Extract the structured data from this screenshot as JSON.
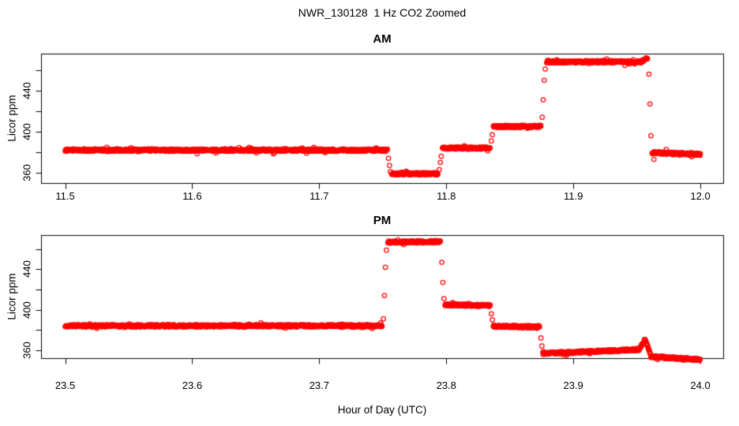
{
  "figure": {
    "title": "NWR_130128  1 Hz CO2 Zoomed",
    "xlabel": "Hour of Day (UTC)",
    "background": "#ffffff",
    "point_color": "#ff0000",
    "axis_color": "#000000"
  },
  "chart_data": [
    {
      "type": "scatter",
      "title": "AM",
      "ylabel": "Licor ppm",
      "marker": "open-circle",
      "color": "#ff0000",
      "sample_rate_hz": 1,
      "grid": false,
      "xlim": [
        11.481,
        12.018
      ],
      "ylim": [
        350,
        476
      ],
      "xticks": [
        11.5,
        11.6,
        11.7,
        11.8,
        11.9,
        12.0
      ],
      "xtick_labels": [
        "11.5",
        "11.6",
        "11.7",
        "11.8",
        "11.9",
        "12.0"
      ],
      "yticks": [
        360,
        380,
        400,
        420,
        440,
        460
      ],
      "ytick_labeled_values": [
        360,
        400,
        440
      ],
      "ytick_labels": [
        "360",
        "400",
        "440"
      ],
      "segments": [
        [
          11.5,
          11.7535,
          382.0,
          382.0
        ],
        [
          11.757,
          11.7935,
          359.0,
          359.0
        ],
        [
          11.797,
          11.8345,
          384.0,
          384.0
        ],
        [
          11.837,
          11.8745,
          405.0,
          405.0
        ],
        [
          11.879,
          11.954,
          468.0,
          468.0
        ],
        [
          11.954,
          11.9585,
          468.5,
          471.0
        ],
        [
          11.962,
          12.0,
          379.5,
          378.0
        ]
      ],
      "transition_points": [
        [
          11.7545,
          374
        ],
        [
          11.7553,
          367
        ],
        [
          11.756,
          361
        ],
        [
          11.7945,
          363
        ],
        [
          11.7953,
          370
        ],
        [
          11.796,
          376
        ],
        [
          11.8355,
          391
        ],
        [
          11.8362,
          397
        ],
        [
          11.8755,
          414
        ],
        [
          11.8763,
          431
        ],
        [
          11.8771,
          450
        ],
        [
          11.8779,
          461
        ],
        [
          11.9595,
          456
        ],
        [
          11.9603,
          427
        ],
        [
          11.9611,
          396
        ],
        [
          11.9635,
          373
        ]
      ]
    },
    {
      "type": "scatter",
      "title": "PM",
      "ylabel": "Licor ppm",
      "marker": "open-circle",
      "color": "#ff0000",
      "sample_rate_hz": 1,
      "grid": false,
      "xlim": [
        23.481,
        24.018
      ],
      "ylim": [
        352,
        474
      ],
      "xticks": [
        23.5,
        23.6,
        23.7,
        23.8,
        23.9,
        24.0
      ],
      "xtick_labels": [
        "23.5",
        "23.6",
        "23.7",
        "23.8",
        "23.9",
        "24.0"
      ],
      "yticks": [
        360,
        380,
        400,
        420,
        440,
        460
      ],
      "ytick_labeled_values": [
        360,
        400,
        440
      ],
      "ytick_labels": [
        "360",
        "400",
        "440"
      ],
      "segments": [
        [
          23.5,
          23.7495,
          384.0,
          384.0
        ],
        [
          23.754,
          23.7955,
          467.0,
          467.5
        ],
        [
          23.799,
          23.8345,
          405.0,
          404.0
        ],
        [
          23.837,
          23.8735,
          383.5,
          383.0
        ],
        [
          23.876,
          23.9515,
          356.5,
          360.5
        ],
        [
          23.952,
          23.9565,
          361.5,
          370.5
        ],
        [
          23.957,
          23.9605,
          369.0,
          356.0
        ],
        [
          23.961,
          24.0,
          353.5,
          350.5
        ]
      ],
      "transition_points": [
        [
          23.7505,
          391
        ],
        [
          23.7513,
          414
        ],
        [
          23.7521,
          442
        ],
        [
          23.7529,
          459
        ],
        [
          23.7965,
          447
        ],
        [
          23.7973,
          427
        ],
        [
          23.7981,
          411
        ],
        [
          23.8355,
          396
        ],
        [
          23.8363,
          390
        ],
        [
          23.8745,
          372
        ],
        [
          23.8753,
          364
        ]
      ]
    }
  ]
}
